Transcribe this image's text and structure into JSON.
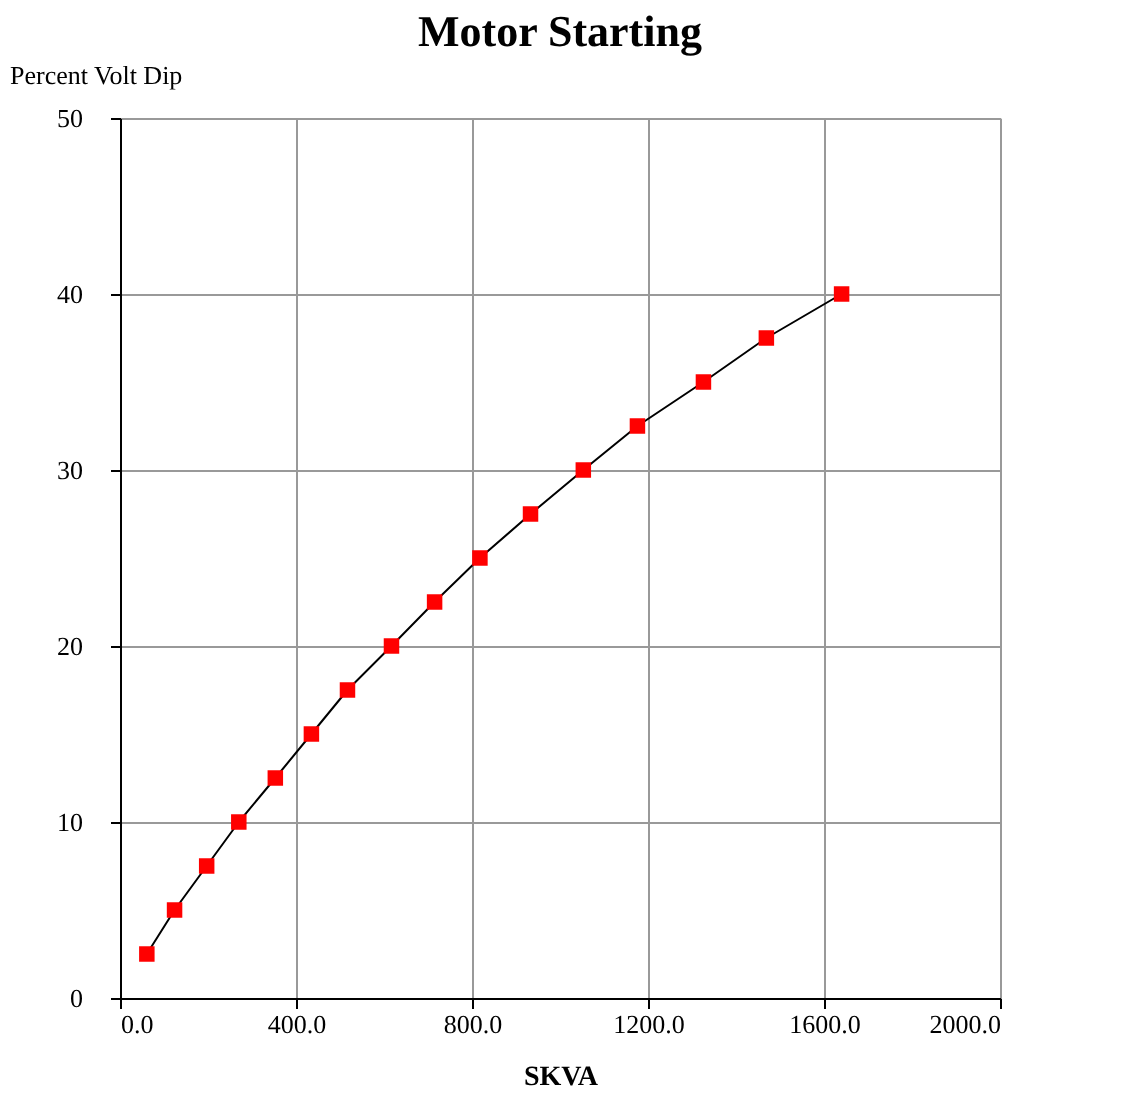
{
  "chart_data": {
    "type": "line",
    "title": "Motor Starting",
    "xlabel": "SKVA",
    "ylabel": "Percent Volt Dip",
    "x": [
      61,
      124,
      197,
      270,
      353,
      435,
      517,
      617,
      715,
      818,
      933,
      1053,
      1176,
      1326,
      1469,
      1640
    ],
    "series": [
      {
        "color": "#ff0000",
        "values": [
          2.5,
          5,
          7.5,
          10,
          12.5,
          15,
          17.5,
          20,
          22.5,
          25,
          27.5,
          30,
          32.5,
          35,
          37.5,
          40
        ]
      }
    ],
    "xlim": [
      0,
      2000
    ],
    "ylim": [
      0,
      50
    ],
    "xticks": [
      {
        "value": 0,
        "label": "0.0"
      },
      {
        "value": 400,
        "label": "400.0"
      },
      {
        "value": 800,
        "label": "800.0"
      },
      {
        "value": 1200,
        "label": "1200.0"
      },
      {
        "value": 1600,
        "label": "1600.0"
      },
      {
        "value": 2000,
        "label": "2000.0"
      }
    ],
    "yticks": [
      0,
      10,
      20,
      30,
      40,
      50
    ],
    "grid": true,
    "marker": "square",
    "line_style": "solid"
  }
}
